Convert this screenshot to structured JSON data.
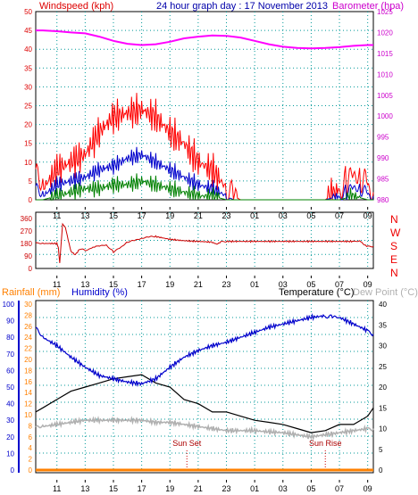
{
  "chart_data": [
    {
      "type": "line",
      "title": "24 hour graph day : 17 November 2013",
      "left_axis_label": "Windspeed (kph)",
      "right_axis_label": "Barometer (hpa)",
      "x_ticks": [
        "11",
        "13",
        "15",
        "17",
        "19",
        "21",
        "23",
        "01",
        "03",
        "05",
        "07",
        "09"
      ],
      "ylim_left": [
        0,
        50
      ],
      "ylim_right": [
        980,
        1025
      ],
      "y_ticks_left": [
        "0",
        "5",
        "10",
        "15",
        "20",
        "25",
        "30",
        "35",
        "40",
        "45",
        "50"
      ],
      "y_ticks_right": [
        "980",
        "985",
        "990",
        "995",
        "1000",
        "1005",
        "1010",
        "1015",
        "1020",
        "1025"
      ],
      "grid": true,
      "colors": {
        "gust": "#ff0000",
        "average": "#0000cc",
        "lull": "#008000",
        "barometer": "#ff00ff"
      },
      "series": [
        {
          "key": "barometer",
          "axis": "right",
          "x": [
            9.5,
            10,
            11,
            12,
            13,
            14,
            15,
            16,
            17,
            18,
            19,
            20,
            21,
            22,
            23,
            24,
            25,
            26,
            27,
            28,
            29,
            30,
            31,
            32,
            33,
            33.4
          ],
          "values": [
            1020.5,
            1020.5,
            1020.3,
            1020.0,
            1019.8,
            1019.0,
            1018.0,
            1017.3,
            1017.0,
            1017.2,
            1017.8,
            1018.6,
            1019.0,
            1019.3,
            1019.2,
            1018.8,
            1018.0,
            1017.2,
            1016.6,
            1016.3,
            1016.2,
            1016.3,
            1016.5,
            1016.8,
            1017.0,
            1017.0
          ]
        },
        {
          "key": "gust",
          "axis": "left",
          "x": [
            9.5,
            10,
            11,
            12,
            13,
            14,
            15,
            16,
            17,
            18,
            19,
            20,
            21,
            22,
            23,
            23.5,
            24,
            30,
            31,
            31.5,
            32,
            32.5,
            33,
            33.4
          ],
          "values": [
            5,
            3,
            8,
            10,
            12,
            18,
            22,
            23,
            24,
            22,
            18,
            15,
            10,
            8,
            3,
            1,
            0,
            0,
            3,
            5,
            6,
            4,
            3,
            2
          ]
        },
        {
          "key": "average",
          "axis": "left",
          "x": [
            9.5,
            10,
            11,
            12,
            13,
            14,
            15,
            16,
            17,
            18,
            19,
            20,
            21,
            22,
            23,
            23.5,
            24,
            30,
            31,
            31.5,
            32,
            32.5,
            33,
            33.4
          ],
          "values": [
            2,
            1,
            4,
            5,
            6,
            8,
            9,
            11,
            12,
            10,
            8,
            6,
            4,
            3,
            1,
            0,
            0,
            0,
            1,
            2,
            3,
            2,
            1,
            1
          ]
        },
        {
          "key": "lull",
          "axis": "left",
          "x": [
            9.5,
            10,
            11,
            12,
            13,
            14,
            15,
            16,
            17,
            18,
            19,
            20,
            21,
            22,
            23,
            23.5,
            24,
            30,
            31,
            32,
            33,
            33.4
          ],
          "values": [
            0,
            0,
            1,
            2,
            3,
            3,
            4,
            4,
            5,
            4,
            3,
            2,
            1,
            1,
            0,
            0,
            0,
            0,
            0,
            1,
            0,
            0
          ]
        }
      ]
    },
    {
      "type": "line",
      "right_axis_label": [
        "N",
        "W",
        "S",
        "E",
        "N"
      ],
      "ylim": [
        0,
        360
      ],
      "y_ticks": [
        "0",
        "90",
        "180",
        "270",
        "360"
      ],
      "x_ticks": [
        "11",
        "13",
        "15",
        "17",
        "19",
        "21",
        "23",
        "01",
        "03",
        "05",
        "07",
        "09"
      ],
      "grid": true,
      "colors": {
        "direction": "#cc0000"
      },
      "series": [
        {
          "key": "direction",
          "x": [
            9.5,
            10,
            11,
            11.1,
            11.2,
            11.4,
            11.6,
            11.8,
            12,
            12.3,
            12.6,
            13,
            13.4,
            14,
            14.5,
            15,
            15.5,
            16,
            16.5,
            17,
            17.5,
            18,
            19,
            20,
            21,
            22,
            22.3,
            22.6,
            23,
            24,
            25,
            26,
            27,
            28,
            29,
            30,
            31,
            32,
            32.5,
            32.7,
            33,
            33.4
          ],
          "values": [
            180,
            180,
            180,
            150,
            40,
            320,
            300,
            200,
            120,
            100,
            140,
            130,
            145,
            165,
            170,
            120,
            150,
            190,
            200,
            215,
            225,
            230,
            210,
            200,
            195,
            190,
            170,
            195,
            195,
            195,
            195,
            195,
            195,
            195,
            195,
            195,
            195,
            195,
            195,
            170,
            160,
            160
          ]
        }
      ]
    },
    {
      "type": "line",
      "left_axis_labels": [
        "Rainfall (mm)",
        "Humidity (%)"
      ],
      "right_axis_labels": [
        "Temperature (°C)",
        "Dew Point (°C)"
      ],
      "ylim_humidity": [
        0,
        100
      ],
      "ylim_rain": [
        0,
        30
      ],
      "ylim_temp": [
        0,
        40
      ],
      "y_ticks_humidity": [
        "0",
        "10",
        "20",
        "30",
        "40",
        "50",
        "60",
        "70",
        "80",
        "90",
        "100"
      ],
      "y_ticks_rain": [
        "0",
        "2",
        "4",
        "6",
        "8",
        "10",
        "12",
        "14",
        "16",
        "18",
        "20",
        "22",
        "24",
        "26",
        "28",
        "30"
      ],
      "y_ticks_temp": [
        "0",
        "5",
        "10",
        "15",
        "20",
        "25",
        "30",
        "35",
        "40"
      ],
      "x_ticks": [
        "11",
        "13",
        "15",
        "17",
        "19",
        "21",
        "23",
        "01",
        "03",
        "05",
        "07",
        "09"
      ],
      "annotations": [
        {
          "text": "Sun Set",
          "x": 20.2
        },
        {
          "text": "Sun Rise",
          "x": 30.0
        }
      ],
      "grid": true,
      "colors": {
        "humidity": "#0000cc",
        "temperature": "#000000",
        "dewpoint": "#b0b0b0",
        "rainfall": "#ff8000"
      },
      "series": [
        {
          "key": "humidity",
          "axis": "humidity",
          "x": [
            9.5,
            10,
            11,
            12,
            13,
            14,
            15,
            16,
            17,
            18,
            19,
            20,
            21,
            22,
            23,
            24,
            25,
            26,
            27,
            28,
            29,
            30,
            30.5,
            31,
            32,
            33,
            33.4
          ],
          "values": [
            85,
            80,
            75,
            68,
            62,
            57,
            55,
            53,
            52,
            55,
            62,
            68,
            72,
            75,
            77,
            80,
            83,
            86,
            88,
            90,
            92,
            93,
            93,
            92,
            88,
            84,
            82
          ]
        },
        {
          "key": "temperature",
          "axis": "temp",
          "x": [
            9.5,
            10,
            11,
            12,
            13,
            14,
            15,
            16,
            17,
            18,
            19,
            20,
            21,
            22,
            23,
            24,
            25,
            26,
            27,
            28,
            29,
            30,
            31,
            32,
            33,
            33.4
          ],
          "values": [
            14,
            15,
            17,
            19,
            20,
            21,
            22,
            22.5,
            23,
            21,
            20,
            17,
            16,
            14,
            14,
            13,
            12,
            11.5,
            11,
            10,
            9,
            9.5,
            11,
            11,
            13,
            15
          ]
        },
        {
          "key": "dewpoint",
          "axis": "temp",
          "x": [
            9.5,
            10,
            11,
            12,
            13,
            14,
            15,
            16,
            17,
            18,
            19,
            20,
            21,
            22,
            23,
            24,
            25,
            26,
            27,
            28,
            29,
            30,
            31,
            32,
            33,
            33.4
          ],
          "values": [
            10,
            10.5,
            11,
            11.5,
            12,
            12,
            12,
            12,
            12,
            11.5,
            11.5,
            11,
            10.5,
            10,
            9.5,
            9.5,
            9.5,
            9.2,
            9,
            8.5,
            8,
            8.5,
            9,
            9.5,
            10,
            10
          ]
        },
        {
          "key": "rainfall",
          "axis": "rain",
          "x": [
            9.5,
            33.4
          ],
          "values": [
            0,
            0
          ]
        }
      ]
    }
  ]
}
